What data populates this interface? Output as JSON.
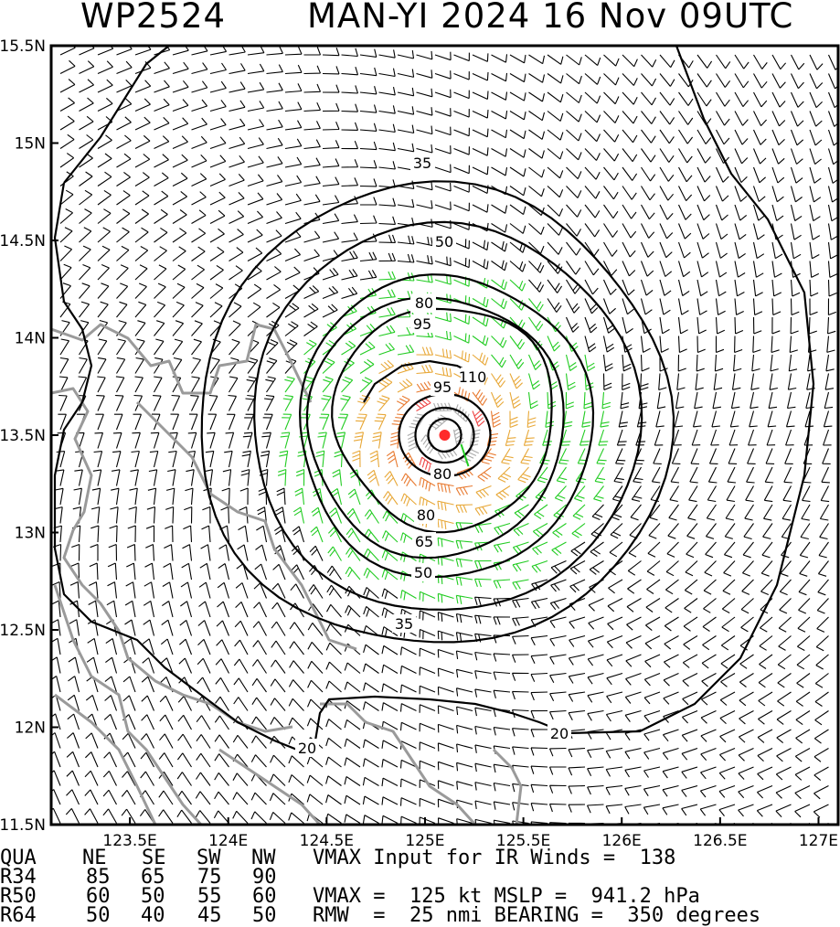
{
  "title": {
    "storm_id": "WP2524",
    "storm_info": "MAN-YI 2024 16 Nov 09UTC"
  },
  "map": {
    "lat_labels": [
      "15.5N",
      "15N",
      "14.5N",
      "14N",
      "13.5N",
      "13N",
      "12.5N",
      "12N",
      "11.5N"
    ],
    "lon_labels": [
      "123.5E",
      "124E",
      "124.5E",
      "125E",
      "125.5E",
      "126E",
      "126.5E",
      "127E"
    ],
    "storm_center": {
      "lat": 13.5,
      "lon": 125.1
    },
    "contour_labels": [
      "35",
      "50",
      "65",
      "80",
      "95",
      "110",
      "95",
      "80",
      "80",
      "65",
      "50",
      "35",
      "20",
      "20"
    ],
    "wind_colors": {
      "below_34kt": "#000000",
      "34_to_49kt": "#22cc22",
      "50_to_63kt": "#e8a838",
      "64_to_82kt": "#e87a30",
      "83_to_95kt": "#ee4444",
      "above_96kt": "#aaaaaa"
    },
    "coastline_color": "#9a9a9a",
    "center_marker_color": "#ff2a2a"
  },
  "table": {
    "header": [
      "QUA",
      "NE",
      "SE",
      "SW",
      "NW"
    ],
    "rows": [
      {
        "label": "R34",
        "ne": "85",
        "se": "65",
        "sw": "75",
        "nw": "90"
      },
      {
        "label": "R50",
        "ne": "60",
        "se": "50",
        "sw": "55",
        "nw": "60"
      },
      {
        "label": "R64",
        "ne": "50",
        "se": "40",
        "sw": "45",
        "nw": "50"
      }
    ]
  },
  "stats": {
    "vmax_input": "VMAX Input for IR Winds =  138",
    "vmax_mslp": "VMAX =  125 kt MSLP =  941.2 hPa",
    "rmw_bearing": "RMW  =  25 nmi BEARING =  350 degrees"
  }
}
